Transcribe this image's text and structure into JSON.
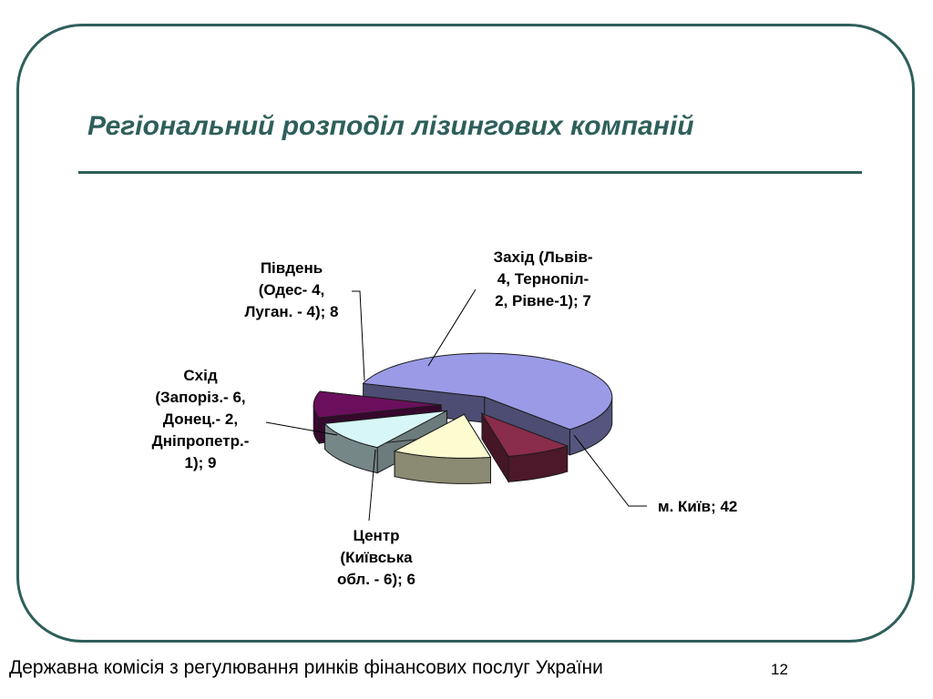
{
  "slide": {
    "title": "Регіональний розподіл лізингових компаній",
    "footer": "Державна комісія з регулювання ринків фінансових послуг України",
    "page_number": "12"
  },
  "chart_data": {
    "type": "pie",
    "style": "3d-exploded",
    "slices": [
      {
        "name": "м. Київ",
        "value": 42,
        "color": "#9a9ae6",
        "label_lines": [
          "м. Київ; 42"
        ]
      },
      {
        "name": "Центр",
        "value": 6,
        "color": "#8a2c4c",
        "label_lines": [
          "Центр",
          "(Київська",
          "обл. - 6); 6"
        ]
      },
      {
        "name": "Схід",
        "value": 9,
        "color": "#fdfbd0",
        "label_lines": [
          "Схід",
          "(Запоріз.- 6,",
          "Донец.- 2,",
          "Дніпропетр.-",
          "1); 9"
        ]
      },
      {
        "name": "Південь",
        "value": 8,
        "color": "#d7f6f8",
        "label_lines": [
          "Південь",
          "(Одес- 4,",
          "Луган. - 4); 8"
        ]
      },
      {
        "name": "Захід",
        "value": 7,
        "color": "#6b0f5c",
        "label_lines": [
          "Захід (Львів-",
          "4, Тернопіл-",
          "2, Рівне-1); 7"
        ]
      }
    ]
  }
}
